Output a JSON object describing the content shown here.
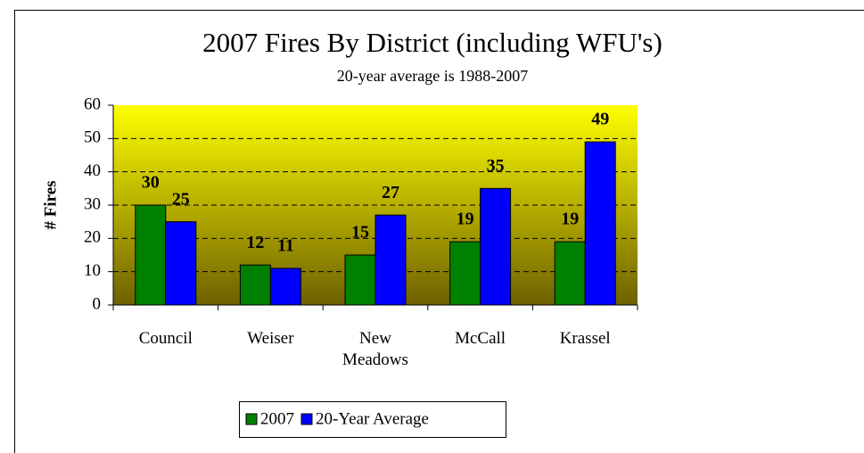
{
  "chart_data": {
    "type": "bar",
    "title": "2007 Fires By District (including WFU's)",
    "subtitle": "20-year average is 1988-2007",
    "y_label": "# Fires",
    "categories": [
      "Council",
      "Weiser",
      "New Meadows",
      "McCall",
      "Krassel"
    ],
    "series": [
      {
        "name": "2007",
        "color": "#008000",
        "values": [
          30,
          12,
          15,
          19,
          19
        ]
      },
      {
        "name": "20-Year Average",
        "color": "#0000ff",
        "values": [
          25,
          11,
          27,
          35,
          49
        ]
      }
    ],
    "ylim": [
      0,
      60
    ],
    "yticks": [
      0,
      10,
      20,
      30,
      40,
      50,
      60
    ],
    "grid": true,
    "legend": "bottom"
  }
}
